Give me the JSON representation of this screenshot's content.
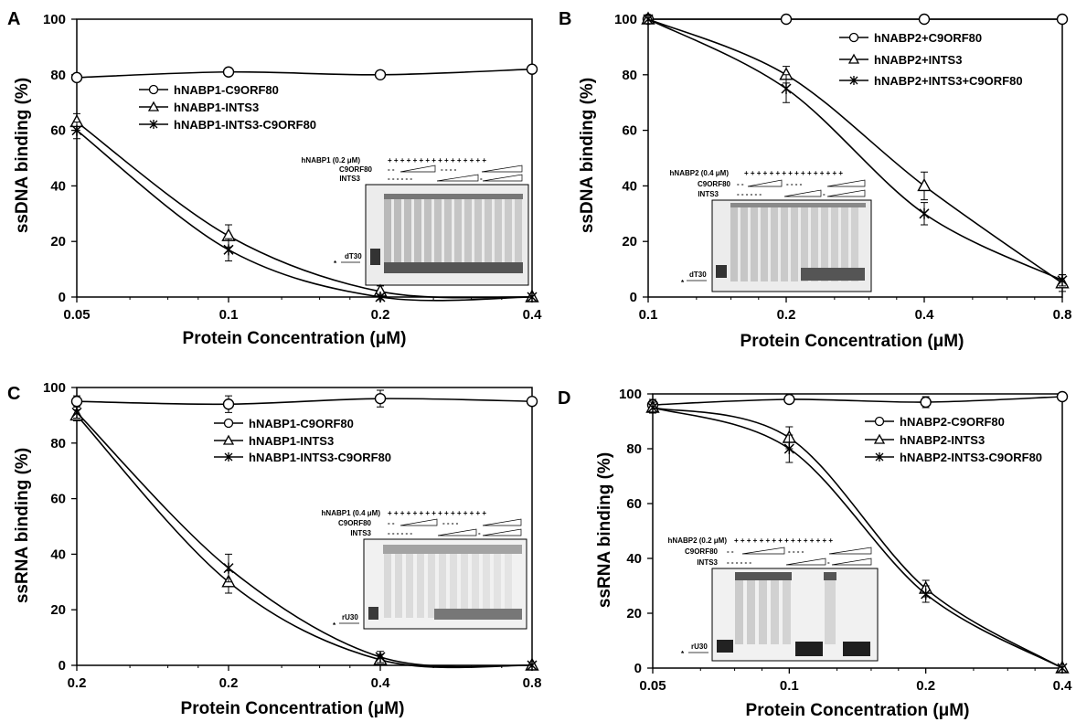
{
  "chart_data": [
    {
      "panel": "A",
      "type": "line",
      "xlabel": "Protein Concentration (μM)",
      "ylabel": "ssDNA binding (%)",
      "x_ticks": [
        "0.05",
        "0.1",
        "0.2",
        "0.4"
      ],
      "ylim": [
        0,
        100
      ],
      "y_ticks": [
        "0",
        "20",
        "40",
        "60",
        "80",
        "100"
      ],
      "legend_position": "upper-middle",
      "series": [
        {
          "name": "hNABP1-C9ORF80",
          "marker": "circle",
          "values": [
            79,
            81,
            80,
            82
          ]
        },
        {
          "name": "hNABP1-INTS3",
          "marker": "triangle",
          "values": [
            63,
            22,
            2,
            0
          ],
          "errors": [
            3,
            4,
            2,
            0
          ]
        },
        {
          "name": "hNABP1-INTS3-C9ORF80",
          "marker": "star",
          "values": [
            60,
            17,
            0,
            0
          ],
          "errors": [
            3,
            4,
            1,
            0
          ]
        }
      ],
      "inset": {
        "rows": [
          "hNABP1 (0.2 μM)",
          "C9ORF80",
          "INTS3"
        ],
        "probe": "dT30",
        "marker": "*",
        "plus_row": "+ + + + + + + + + + + + + + + +",
        "c9_dash": "- -",
        "c9_dash2": "- - - -",
        "ints3_dash": "- - - - - -",
        "ints3_dash2": "-"
      }
    },
    {
      "panel": "B",
      "type": "line",
      "xlabel": "Protein Concentration (μM)",
      "ylabel": "ssDNA binding (%)",
      "x_ticks": [
        "0.1",
        "0.2",
        "0.4",
        "0.8"
      ],
      "ylim": [
        0,
        100
      ],
      "y_ticks": [
        "0",
        "20",
        "40",
        "60",
        "80",
        "100"
      ],
      "legend_position": "top-right",
      "series": [
        {
          "name": "hNABP2+C9ORF80",
          "marker": "circle",
          "values": [
            100,
            100,
            100,
            100
          ]
        },
        {
          "name": "hNABP2+INTS3",
          "marker": "triangle",
          "values": [
            100,
            80,
            40,
            5
          ],
          "errors": [
            0,
            3,
            5,
            3
          ]
        },
        {
          "name": "hNABP2+INTS3+C9ORF80",
          "marker": "star",
          "values": [
            100,
            75,
            30,
            6
          ],
          "errors": [
            0,
            5,
            4,
            2
          ]
        }
      ],
      "inset": {
        "rows": [
          "hNABP2 (0.4 μM)",
          "C9ORF80",
          "INTS3"
        ],
        "probe": "dT30",
        "marker": "*",
        "plus_row": "+ + + + + + + + + + + + + + + +",
        "c9_dash": "- -",
        "c9_dash2": "- - - -",
        "ints3_dash": "- - - - - -",
        "ints3_dash2": "-"
      }
    },
    {
      "panel": "C",
      "type": "line",
      "xlabel": "Protein Concentration (μM)",
      "ylabel": "ssRNA binding (%)",
      "x_ticks": [
        "0.2",
        "0.2",
        "0.4",
        "0.8"
      ],
      "ylim": [
        0,
        100
      ],
      "y_ticks": [
        "0",
        "20",
        "40",
        "60",
        "80",
        "100"
      ],
      "legend_position": "upper-middle",
      "series": [
        {
          "name": "hNABP1-C9ORF80",
          "marker": "circle",
          "values": [
            95,
            94,
            96,
            95
          ],
          "errors": [
            2,
            3,
            3,
            0
          ]
        },
        {
          "name": "hNABP1-INTS3",
          "marker": "triangle",
          "values": [
            90,
            30,
            2,
            0
          ],
          "errors": [
            2,
            4,
            2,
            0
          ]
        },
        {
          "name": "hNABP1-INTS3-C9ORF80",
          "marker": "star",
          "values": [
            91,
            35,
            3,
            0
          ],
          "errors": [
            2,
            5,
            2,
            0
          ]
        }
      ],
      "inset": {
        "rows": [
          "hNABP1 (0.4 μM)",
          "C9ORF80",
          "INTS3"
        ],
        "probe": "rU30",
        "marker": "*",
        "plus_row": "+ + + + + + + + + + + + + + + +",
        "c9_dash": "- -",
        "c9_dash2": "- - - -",
        "ints3_dash": "- - - - - -",
        "ints3_dash2": "-"
      }
    },
    {
      "panel": "D",
      "type": "line",
      "xlabel": "Protein Concentration (μM)",
      "ylabel": "ssRNA binding (%)",
      "x_ticks": [
        "0.05",
        "0.1",
        "0.2",
        "0.4"
      ],
      "ylim": [
        0,
        100
      ],
      "y_ticks": [
        "0",
        "20",
        "40",
        "60",
        "80",
        "100"
      ],
      "legend_position": "upper-right",
      "series": [
        {
          "name": "hNABP2-C9ORF80",
          "marker": "circle",
          "values": [
            96,
            98,
            97,
            99
          ],
          "errors": [
            2,
            0,
            2,
            0
          ]
        },
        {
          "name": "hNABP2-INTS3",
          "marker": "triangle",
          "values": [
            95,
            84,
            29,
            0
          ],
          "errors": [
            2,
            4,
            3,
            0
          ]
        },
        {
          "name": "hNABP2-INTS3-C9ORF80",
          "marker": "star",
          "values": [
            95,
            80,
            27,
            0
          ],
          "errors": [
            2,
            5,
            3,
            0
          ]
        }
      ],
      "inset": {
        "rows": [
          "hNABP2 (0.2 μM)",
          "C9ORF80",
          "INTS3"
        ],
        "probe": "rU30",
        "marker": "*",
        "plus_row": "+ + + + + + + + + + + + + + + +",
        "c9_dash": "- -",
        "c9_dash2": "- - - -",
        "ints3_dash": "- - - - - -",
        "ints3_dash2": "-"
      }
    }
  ]
}
